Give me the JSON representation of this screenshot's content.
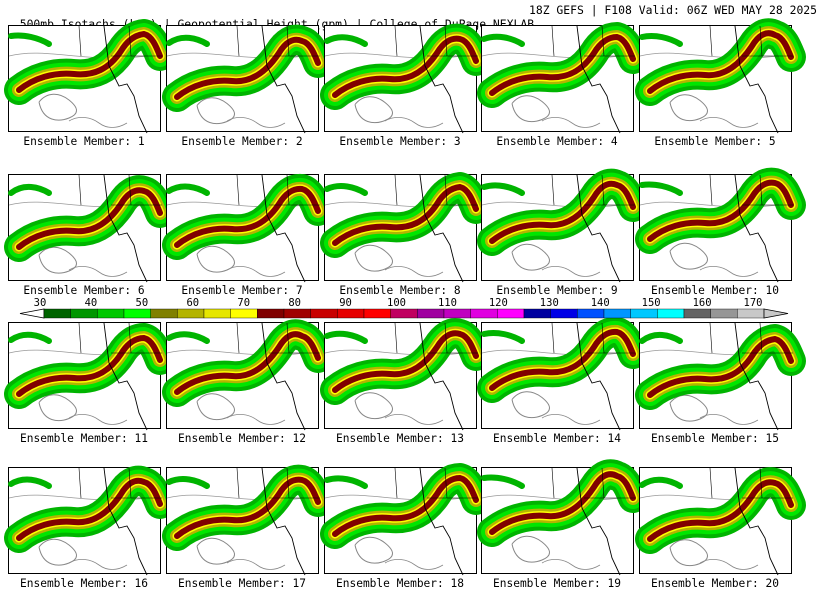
{
  "header": {
    "left": "500mb Isotachs (kts) | Geopotential Height (gpm) | College of DuPage NEXLAB",
    "right": "18Z GEFS | F108 Valid: 06Z WED MAY 28 2025"
  },
  "members": [
    "Ensemble Member: 1",
    "Ensemble Member: 2",
    "Ensemble Member: 3",
    "Ensemble Member: 4",
    "Ensemble Member: 5",
    "Ensemble Member: 6",
    "Ensemble Member: 7",
    "Ensemble Member: 8",
    "Ensemble Member: 9",
    "Ensemble Member: 10",
    "Ensemble Member: 11",
    "Ensemble Member: 12",
    "Ensemble Member: 13",
    "Ensemble Member: 14",
    "Ensemble Member: 15",
    "Ensemble Member: 16",
    "Ensemble Member: 17",
    "Ensemble Member: 18",
    "Ensemble Member: 19",
    "Ensemble Member: 20"
  ],
  "colorbar": {
    "labels": [
      "30",
      "40",
      "50",
      "60",
      "70",
      "80",
      "90",
      "100",
      "110",
      "120",
      "130",
      "140",
      "150",
      "160",
      "170"
    ],
    "colors": [
      "#006400",
      "#009600",
      "#00c800",
      "#00ff00",
      "#808000",
      "#b4b400",
      "#e6e600",
      "#ffff00",
      "#800000",
      "#a00000",
      "#c80000",
      "#e60000",
      "#ff0000",
      "#c00060",
      "#a000a0",
      "#c000c0",
      "#e000e0",
      "#ff00ff",
      "#0000a0",
      "#0000e6",
      "#0050ff",
      "#0096ff",
      "#00c8ff",
      "#00ffff",
      "#646464",
      "#969696",
      "#c8c8c8"
    ]
  }
}
